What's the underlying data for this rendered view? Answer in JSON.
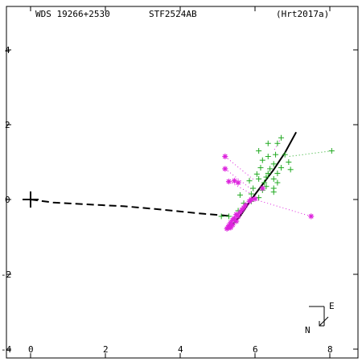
{
  "header": {
    "wds_id": "WDS 19266+2530",
    "discoverer": "STF2524AB",
    "orbit_ref": "(Hrt2017a)"
  },
  "orientation": {
    "north_label": "N",
    "east_label": "E"
  },
  "colors": {
    "orbit": "#000000",
    "measures": "#22aa22",
    "residuals_bad": "#dd22dd",
    "primary": "#000000"
  },
  "chart_data": {
    "type": "scatter",
    "title": "",
    "xlabel": "",
    "ylabel": "",
    "xlim": [
      -0.5,
      8.9
    ],
    "ylim": [
      -4.0,
      4.9
    ],
    "x_ticks": [
      0,
      2,
      4,
      6,
      8
    ],
    "y_ticks": [
      4,
      2,
      0,
      -2,
      -4
    ],
    "x_tick_labels": [
      "0",
      "2",
      "4",
      "6",
      "8"
    ],
    "y_tick_labels": [
      "4",
      "2",
      "0",
      "-2",
      "-4"
    ],
    "primary_star": [
      0,
      0
    ],
    "orbit_solid": [
      [
        5.3,
        -0.8
      ],
      [
        5.6,
        -0.45
      ],
      [
        5.9,
        0.0
      ],
      [
        6.2,
        0.4
      ],
      [
        6.5,
        0.8
      ],
      [
        6.8,
        1.25
      ],
      [
        7.1,
        1.8
      ]
    ],
    "orbit_dashed": [
      [
        0,
        0
      ],
      [
        0.6,
        -0.08
      ],
      [
        1.5,
        -0.13
      ],
      [
        2.5,
        -0.18
      ],
      [
        3.3,
        -0.25
      ],
      [
        4.0,
        -0.32
      ],
      [
        4.6,
        -0.38
      ],
      [
        5.1,
        -0.42
      ],
      [
        5.4,
        -0.45
      ]
    ],
    "measures_plus": [
      [
        8.05,
        1.3
      ],
      [
        6.7,
        1.65
      ],
      [
        6.6,
        1.5
      ],
      [
        6.35,
        1.5
      ],
      [
        6.1,
        1.3
      ],
      [
        6.55,
        1.2
      ],
      [
        6.8,
        1.2
      ],
      [
        6.35,
        1.15
      ],
      [
        6.2,
        1.05
      ],
      [
        6.9,
        1.0
      ],
      [
        6.5,
        0.95
      ],
      [
        6.15,
        0.85
      ],
      [
        6.4,
        0.82
      ],
      [
        6.7,
        0.85
      ],
      [
        6.35,
        0.7
      ],
      [
        6.05,
        0.68
      ],
      [
        6.6,
        0.7
      ],
      [
        6.3,
        0.6
      ],
      [
        6.1,
        0.55
      ],
      [
        6.5,
        0.55
      ],
      [
        6.25,
        0.45
      ],
      [
        6.6,
        0.45
      ],
      [
        5.85,
        0.5
      ],
      [
        6.3,
        0.35
      ],
      [
        6.5,
        0.3
      ],
      [
        5.95,
        0.3
      ],
      [
        6.2,
        0.25
      ],
      [
        6.5,
        0.2
      ],
      [
        5.9,
        0.15
      ],
      [
        5.6,
        0.12
      ],
      [
        6.1,
        0.05
      ],
      [
        5.9,
        -0.05
      ],
      [
        5.7,
        -0.1
      ],
      [
        5.3,
        -0.45
      ],
      [
        5.1,
        -0.45
      ],
      [
        5.45,
        -0.55
      ],
      [
        5.55,
        -0.3
      ],
      [
        6.95,
        0.8
      ]
    ],
    "residuals_star": [
      [
        5.5,
        -0.4
      ],
      [
        5.45,
        -0.5
      ],
      [
        5.4,
        -0.55
      ],
      [
        5.35,
        -0.62
      ],
      [
        5.3,
        -0.7
      ],
      [
        5.28,
        -0.75
      ],
      [
        5.25,
        -0.78
      ],
      [
        5.5,
        -0.58
      ],
      [
        5.4,
        -0.68
      ],
      [
        5.35,
        -0.75
      ],
      [
        5.55,
        -0.45
      ],
      [
        5.6,
        -0.35
      ],
      [
        5.65,
        -0.28
      ],
      [
        5.7,
        -0.22
      ],
      [
        5.75,
        -0.15
      ],
      [
        5.85,
        -0.05
      ],
      [
        5.9,
        0.0
      ],
      [
        6.0,
        0.02
      ],
      [
        5.2,
        1.15
      ],
      [
        5.45,
        0.5
      ],
      [
        5.55,
        0.45
      ],
      [
        5.2,
        0.82
      ],
      [
        5.3,
        0.48
      ],
      [
        7.5,
        -0.45
      ],
      [
        6.2,
        0.3
      ]
    ],
    "residual_lines": [
      [
        [
          5.2,
          1.15
        ],
        [
          6.0,
          0.5
        ]
      ],
      [
        [
          5.2,
          0.82
        ],
        [
          6.0,
          0.2
        ]
      ],
      [
        [
          5.3,
          0.48
        ],
        [
          6.0,
          0.1
        ]
      ],
      [
        [
          7.5,
          -0.45
        ],
        [
          6.0,
          0.0
        ]
      ],
      [
        [
          8.05,
          1.3
        ],
        [
          6.9,
          1.15
        ]
      ],
      [
        [
          6.7,
          1.65
        ],
        [
          6.5,
          1.3
        ]
      ]
    ]
  }
}
